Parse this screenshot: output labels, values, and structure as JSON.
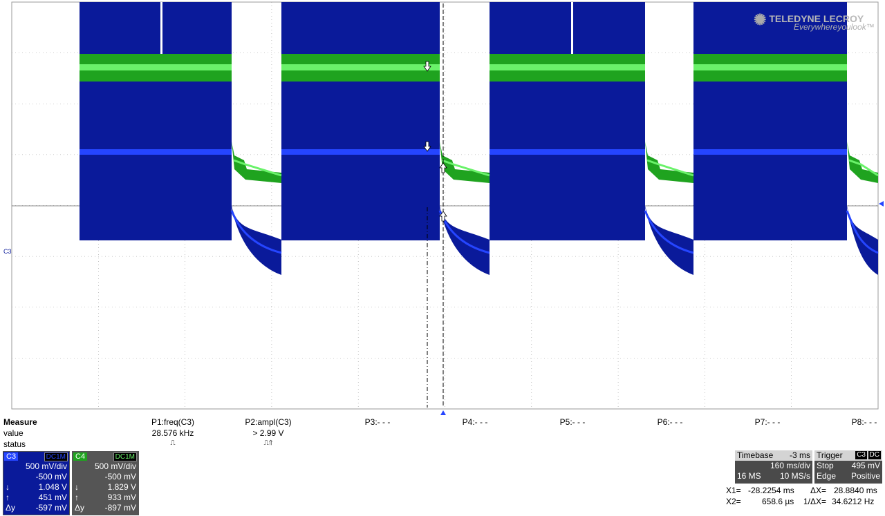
{
  "branding": {
    "company": "TELEDYNE LECROY",
    "tagline": "Everywhereyoulook",
    "tm": "™"
  },
  "colors": {
    "c3": "#0a1a9a",
    "c3_bright": "#2545ff",
    "c4": "#1fa31f",
    "c4_bright": "#6af26a",
    "grid": "#9a9a9a"
  },
  "channel_marker": "C3",
  "measure": {
    "title": "Measure",
    "row_value": "value",
    "row_status": "status",
    "params": [
      {
        "label": "P1:freq(C3)",
        "value": "28.576 kHz",
        "status": "⎍"
      },
      {
        "label": "P2:ampl(C3)",
        "value": "> 2.99 V",
        "status": "⎍⇑"
      },
      {
        "label": "P3:- - -",
        "value": "",
        "status": ""
      },
      {
        "label": "P4:- - -",
        "value": "",
        "status": ""
      },
      {
        "label": "P5:- - -",
        "value": "",
        "status": ""
      },
      {
        "label": "P6:- - -",
        "value": "",
        "status": ""
      },
      {
        "label": "P7:- - -",
        "value": "",
        "status": ""
      },
      {
        "label": "P8:- - -",
        "value": "",
        "status": ""
      }
    ]
  },
  "channels": [
    {
      "tag": "C3",
      "coupling": "DC1M",
      "vdiv": "500 mV/div",
      "offset": "-500 mV",
      "cursor1": "1.048 V",
      "cursor2": "451 mV",
      "delta": "-597 mV",
      "k1": "↓",
      "k2": "↑",
      "kd": "Δy"
    },
    {
      "tag": "C4",
      "coupling": "DC1M",
      "vdiv": "500 mV/div",
      "offset": "-500 mV",
      "cursor1": "1.829 V",
      "cursor2": "933 mV",
      "delta": "-897 mV",
      "k1": "↓",
      "k2": "↑",
      "kd": "Δy"
    }
  ],
  "timebase": {
    "label": "Timebase",
    "delay": "-3 ms",
    "tdiv": "160 ms/div",
    "samples": "16 MS",
    "rate": "10 MS/s"
  },
  "trigger": {
    "label": "Trigger",
    "source": "C3",
    "coupling": "DC",
    "mode": "Stop",
    "level": "495 mV",
    "type": "Edge",
    "slope": "Positive"
  },
  "cursors": {
    "x1_label": "X1=",
    "x1": "-28.2254 ms",
    "dx_label": "ΔX=",
    "dx": "28.8840 ms",
    "x2_label": "X2=",
    "x2": "658.6 µs",
    "inv_label": "1/ΔX=",
    "inv": "34.6212 Hz"
  }
}
